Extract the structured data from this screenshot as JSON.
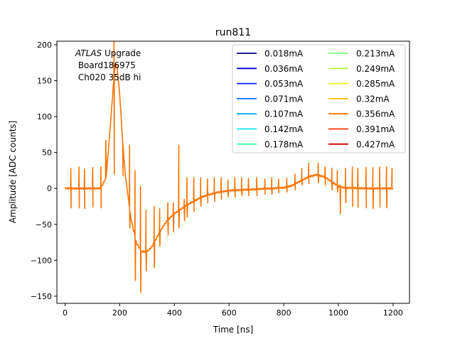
{
  "chart_data": {
    "type": "line",
    "title": "run811",
    "xlabel": "Time [ns]",
    "ylabel": "Amplitude [ADC counts]",
    "xlim": [
      -30,
      1260
    ],
    "ylim": [
      -160,
      205
    ],
    "xticks": [
      0,
      200,
      400,
      600,
      800,
      1000,
      1200
    ],
    "xtick_labels": [
      "0",
      "200",
      "400",
      "600",
      "800",
      "1000",
      "1200"
    ],
    "yticks": [
      -150,
      -100,
      -50,
      0,
      50,
      100,
      150,
      200
    ],
    "ytick_labels": [
      "−150",
      "−100",
      "−50",
      "0",
      "50",
      "100",
      "150",
      "200"
    ],
    "annotation": {
      "italic": "ATLAS",
      "line1_rest": " Upgrade",
      "line2": " Board186975",
      "line3": " Ch020 35dB hi"
    },
    "legend_position": "top-right",
    "legend_columns": 2,
    "series": [
      {
        "name": "0.018mA",
        "color": "#00007f"
      },
      {
        "name": "0.036mA",
        "color": "#0000d9"
      },
      {
        "name": "0.053mA",
        "color": "#0020ff"
      },
      {
        "name": "0.071mA",
        "color": "#0070ff"
      },
      {
        "name": "0.107mA",
        "color": "#00acff"
      },
      {
        "name": "0.142mA",
        "color": "#0de5f0"
      },
      {
        "name": "0.178mA",
        "color": "#4affad"
      },
      {
        "name": "0.213mA",
        "color": "#7dff7a"
      },
      {
        "name": "0.249mA",
        "color": "#b3ff43"
      },
      {
        "name": "0.285mA",
        "color": "#f0f90e"
      },
      {
        "name": "0.32mA",
        "color": "#ffb900"
      },
      {
        "name": "0.356mA",
        "color": "#ff7300"
      },
      {
        "name": "0.391mA",
        "color": "#ff3100"
      },
      {
        "name": "0.427mA",
        "color": "#cc0000"
      }
    ],
    "plotted_series": "0.356mA",
    "pulse_baseline": [
      [
        0,
        0
      ],
      [
        130,
        0
      ],
      [
        150,
        15
      ],
      [
        160,
        60
      ],
      [
        170,
        110
      ],
      [
        180,
        160
      ],
      [
        185,
        175
      ],
      [
        190,
        170
      ],
      [
        200,
        130
      ],
      [
        210,
        70
      ],
      [
        220,
        20
      ],
      [
        240,
        -40
      ],
      [
        260,
        -75
      ],
      [
        280,
        -88
      ],
      [
        300,
        -88
      ],
      [
        320,
        -80
      ],
      [
        340,
        -65
      ],
      [
        360,
        -52
      ],
      [
        380,
        -42
      ],
      [
        400,
        -35
      ],
      [
        420,
        -30
      ],
      [
        450,
        -22
      ],
      [
        500,
        -12
      ],
      [
        550,
        -6
      ],
      [
        600,
        -3
      ],
      [
        650,
        -2
      ],
      [
        700,
        -1
      ],
      [
        750,
        0
      ],
      [
        800,
        1
      ],
      [
        830,
        4
      ],
      [
        860,
        10
      ],
      [
        890,
        16
      ],
      [
        920,
        19
      ],
      [
        950,
        16
      ],
      [
        980,
        8
      ],
      [
        1000,
        3
      ],
      [
        1020,
        1
      ],
      [
        1100,
        0
      ],
      [
        1200,
        0
      ]
    ],
    "spikes": [
      [
        20,
        28,
        -27
      ],
      [
        50,
        30,
        -27
      ],
      [
        70,
        27,
        -28
      ],
      [
        100,
        29,
        -26
      ],
      [
        130,
        30,
        -27
      ],
      [
        148,
        67,
        38
      ],
      [
        178,
        205,
        20
      ],
      [
        210,
        60,
        18
      ],
      [
        235,
        60,
        -55
      ],
      [
        255,
        25,
        -128
      ],
      [
        275,
        3,
        -145
      ],
      [
        295,
        -30,
        -115
      ],
      [
        325,
        -25,
        -110
      ],
      [
        345,
        -28,
        -80
      ],
      [
        375,
        -20,
        -65
      ],
      [
        395,
        -20,
        -60
      ],
      [
        415,
        60,
        -55
      ],
      [
        435,
        -15,
        -45
      ],
      [
        445,
        15,
        -40
      ],
      [
        470,
        15,
        -32
      ],
      [
        495,
        15,
        -25
      ],
      [
        520,
        13,
        -20
      ],
      [
        545,
        15,
        -18
      ],
      [
        570,
        15,
        -15
      ],
      [
        595,
        12,
        -12
      ],
      [
        620,
        15,
        -12
      ],
      [
        645,
        15,
        -10
      ],
      [
        670,
        14,
        -10
      ],
      [
        700,
        15,
        -10
      ],
      [
        730,
        13,
        -8
      ],
      [
        755,
        15,
        -8
      ],
      [
        780,
        13,
        -6
      ],
      [
        810,
        14,
        -5
      ],
      [
        840,
        20,
        -2
      ],
      [
        865,
        28,
        5
      ],
      [
        890,
        35,
        7
      ],
      [
        925,
        35,
        8
      ],
      [
        950,
        30,
        5
      ],
      [
        975,
        28,
        -2
      ],
      [
        995,
        25,
        -5
      ],
      [
        1005,
        5,
        -35
      ],
      [
        1025,
        28,
        -20
      ],
      [
        1050,
        30,
        -25
      ],
      [
        1070,
        28,
        -26
      ],
      [
        1100,
        29,
        -27
      ],
      [
        1125,
        29,
        -28
      ],
      [
        1150,
        30,
        -26
      ],
      [
        1175,
        30,
        -27
      ],
      [
        1195,
        28,
        0
      ]
    ]
  }
}
